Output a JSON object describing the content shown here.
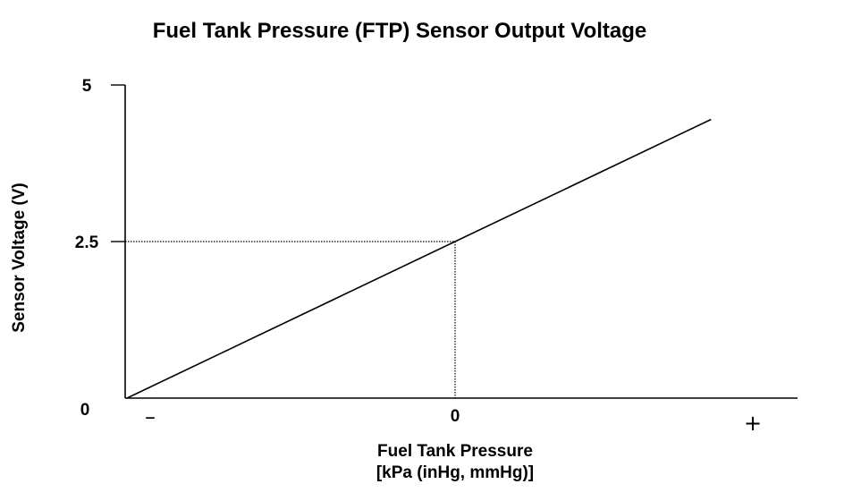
{
  "chart_data": {
    "type": "line",
    "title": "Fuel Tank Pressure (FTP) Sensor Output Voltage",
    "xlabel_line1": "Fuel Tank Pressure",
    "xlabel_line2": "[kPa (inHg, mmHg)]",
    "ylabel": "Sensor Voltage (V)",
    "x_tick_labels": {
      "negative": "–",
      "zero": "0",
      "positive": "+"
    },
    "y_ticks": [
      {
        "value": 0,
        "label": "0"
      },
      {
        "value": 2.5,
        "label": "2.5"
      },
      {
        "value": 5,
        "label": "5"
      }
    ],
    "xlim": [
      -1,
      1
    ],
    "ylim": [
      0,
      5
    ],
    "series": [
      {
        "x": [
          -1,
          0,
          0.78
        ],
        "y": [
          0,
          2.5,
          4.45
        ]
      }
    ],
    "reference_lines": {
      "x": 0,
      "y": 2.5,
      "style": "dotted"
    },
    "grid": false,
    "legend": "none",
    "colors": {
      "line": "#000000",
      "background": "#ffffff"
    }
  }
}
